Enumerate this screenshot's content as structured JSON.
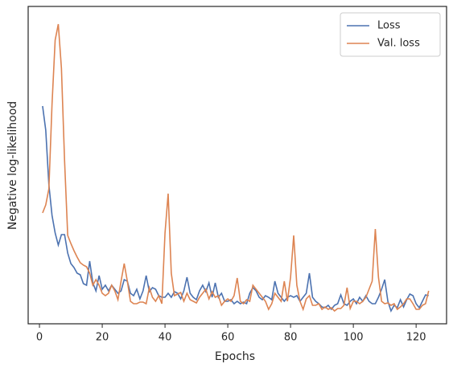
{
  "chart_data": {
    "type": "line",
    "xlabel": "Epochs",
    "ylabel": "Negative log-likelihood",
    "x": [
      1,
      2,
      3,
      4,
      5,
      6,
      7,
      8,
      9,
      10,
      11,
      12,
      13,
      14,
      15,
      16,
      17,
      18,
      19,
      20,
      21,
      22,
      23,
      24,
      25,
      26,
      27,
      28,
      29,
      30,
      31,
      32,
      33,
      34,
      35,
      36,
      37,
      38,
      39,
      40,
      41,
      42,
      43,
      44,
      45,
      46,
      47,
      48,
      49,
      50,
      51,
      52,
      53,
      54,
      55,
      56,
      57,
      58,
      59,
      60,
      61,
      62,
      63,
      64,
      65,
      66,
      67,
      68,
      69,
      70,
      71,
      72,
      73,
      74,
      75,
      76,
      77,
      78,
      79,
      80,
      81,
      82,
      83,
      84,
      85,
      86,
      87,
      88,
      89,
      90,
      91,
      92,
      93,
      94,
      95,
      96,
      97,
      98,
      99,
      100,
      101,
      102,
      103,
      104,
      105,
      106,
      107,
      108,
      109,
      110,
      111,
      112,
      113,
      114,
      115,
      116,
      117,
      118,
      119,
      120,
      121,
      122,
      123,
      124
    ],
    "series": [
      {
        "name": "Loss",
        "color": "#4c72b0",
        "values": [
          271,
          241,
          173,
          135,
          113,
          98,
          111,
          111,
          88,
          75,
          70,
          63,
          61,
          50,
          48,
          78,
          51,
          41,
          60,
          43,
          48,
          41,
          48,
          43,
          38,
          41,
          55,
          53,
          38,
          35,
          43,
          31,
          41,
          60,
          40,
          45,
          43,
          35,
          33,
          33,
          38,
          33,
          40,
          38,
          31,
          41,
          58,
          38,
          33,
          30,
          41,
          48,
          40,
          51,
          33,
          51,
          33,
          38,
          28,
          28,
          30,
          25,
          28,
          25,
          27,
          25,
          38,
          45,
          41,
          33,
          30,
          35,
          33,
          30,
          53,
          38,
          33,
          28,
          33,
          35,
          33,
          35,
          28,
          33,
          38,
          63,
          33,
          28,
          25,
          21,
          20,
          23,
          18,
          23,
          25,
          36,
          25,
          23,
          28,
          31,
          25,
          33,
          28,
          35,
          28,
          25,
          25,
          33,
          43,
          55,
          28,
          16,
          23,
          20,
          30,
          21,
          30,
          37,
          35,
          25,
          20,
          28,
          36,
          35
        ]
      },
      {
        "name": "Val. loss",
        "color": "#dd8452",
        "values": [
          138,
          148,
          168,
          273,
          353,
          373,
          318,
          203,
          110,
          100,
          91,
          83,
          76,
          73,
          71,
          63,
          48,
          55,
          48,
          38,
          35,
          38,
          48,
          41,
          30,
          53,
          75,
          53,
          28,
          25,
          25,
          27,
          27,
          25,
          45,
          33,
          28,
          35,
          25,
          113,
          162,
          63,
          35,
          37,
          39,
          28,
          38,
          30,
          28,
          26,
          33,
          38,
          43,
          31,
          40,
          33,
          35,
          23,
          28,
          31,
          28,
          35,
          57,
          28,
          25,
          30,
          28,
          48,
          43,
          38,
          33,
          28,
          18,
          25,
          38,
          33,
          28,
          53,
          28,
          58,
          110,
          48,
          28,
          18,
          31,
          35,
          23,
          23,
          25,
          18,
          21,
          18,
          20,
          16,
          19,
          19,
          23,
          45,
          19,
          28,
          28,
          25,
          28,
          33,
          43,
          53,
          118,
          58,
          28,
          25,
          26,
          23,
          25,
          18,
          21,
          25,
          31,
          31,
          25,
          18,
          18,
          23,
          25,
          41
        ]
      }
    ],
    "xlim": [
      -3.6,
      129.7
    ],
    "xticks": [
      0,
      20,
      40,
      60,
      80,
      100,
      120
    ],
    "ylim": [
      0,
      395
    ],
    "legend": "upper right"
  }
}
